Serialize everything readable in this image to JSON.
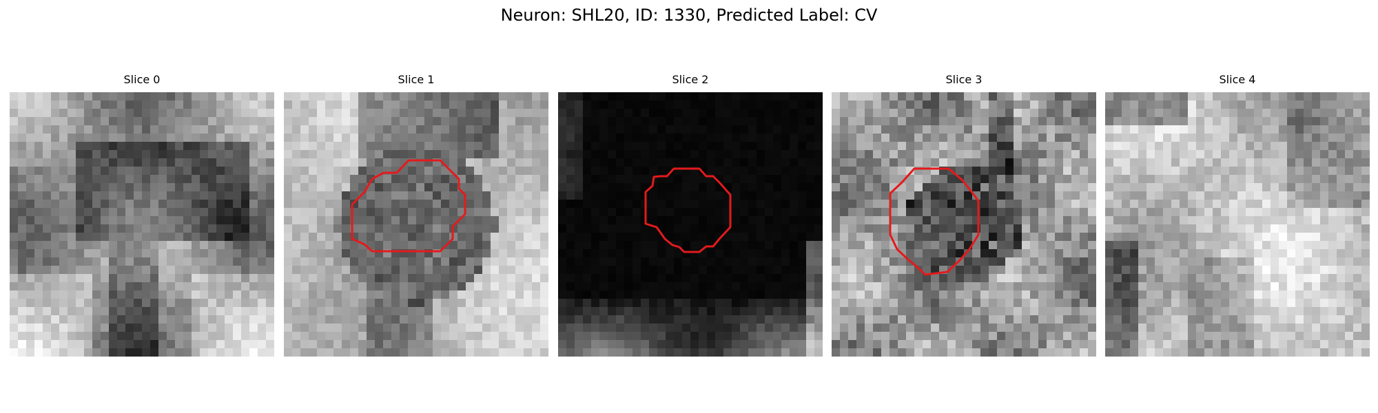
{
  "figure": {
    "title": "Neuron: SHL20, ID: 1330, Predicted Label: CV"
  },
  "colors": {
    "background": "#ffffff",
    "contour": "#e41a1c",
    "colormap": "grayscale"
  },
  "slices": [
    {
      "title": "Slice 0",
      "has_contour": false,
      "image": "grayscale-microscopy-tile-dark-center"
    },
    {
      "title": "Slice 1",
      "has_contour": true,
      "image": "grayscale-microscopy-tile-round-cell"
    },
    {
      "title": "Slice 2",
      "has_contour": true,
      "image": "near-black-tile-faint-bottom"
    },
    {
      "title": "Slice 3",
      "has_contour": true,
      "image": "noisy-grayscale-tile-dark-cell"
    },
    {
      "title": "Slice 4",
      "has_contour": false,
      "image": "bright-grayscale-tile"
    }
  ]
}
